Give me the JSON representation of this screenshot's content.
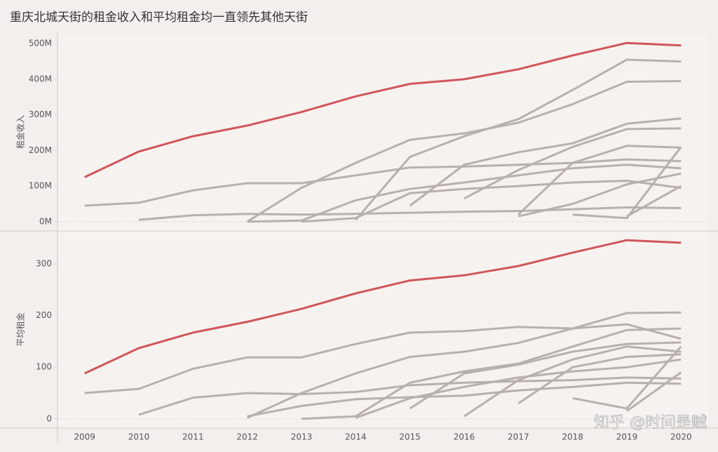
{
  "chart_data": [
    {
      "type": "line",
      "title": "重庆北城天街的租金收入和平均租金均一直领先其他天街",
      "y_label": "租金收入",
      "x": [
        2009,
        2010,
        2011,
        2012,
        2013,
        2014,
        2015,
        2016,
        2017,
        2018,
        2019,
        2020
      ],
      "xlim": [
        2008.5,
        2020.5
      ],
      "ylim": [
        -26,
        530
      ],
      "yticks": [
        {
          "value": 0,
          "label": "0M"
        },
        {
          "value": 100,
          "label": "100M"
        },
        {
          "value": 200,
          "label": "200M"
        },
        {
          "value": 300,
          "label": "300M"
        },
        {
          "value": 400,
          "label": "400M"
        },
        {
          "value": 500,
          "label": "500M"
        }
      ],
      "series": [
        {
          "color": "#d0565a",
          "values": [
            125,
            197,
            240,
            270,
            308,
            352,
            387,
            400,
            428,
            467,
            502,
            495
          ]
        },
        {
          "color": "#b8b0ae",
          "values": [
            45,
            53,
            88,
            108,
            108,
            130,
            152,
            155,
            160,
            165,
            175,
            170
          ]
        },
        {
          "color": "#b8b0ae",
          "values": [
            null,
            5,
            18,
            22,
            20,
            22,
            25,
            28,
            30,
            35,
            40,
            38
          ]
        },
        {
          "color": "#b8b0ae",
          "values": [
            null,
            null,
            null,
            0,
            95,
            165,
            230,
            248,
            278,
            330,
            393,
            395
          ]
        },
        {
          "color": "#b8b0ae",
          "values": [
            null,
            null,
            null,
            null,
            null,
            5,
            182,
            240,
            288,
            370,
            455,
            450
          ]
        },
        {
          "color": "#b8b0ae",
          "values": [
            null,
            null,
            null,
            0,
            3,
            60,
            92,
            110,
            130,
            150,
            160,
            150
          ]
        },
        {
          "color": "#b8b0ae",
          "values": [
            null,
            null,
            null,
            null,
            null,
            null,
            45,
            160,
            195,
            220,
            275,
            290
          ]
        },
        {
          "color": "#b8b0ae",
          "values": [
            null,
            null,
            null,
            null,
            null,
            null,
            null,
            65,
            145,
            210,
            260,
            262
          ]
        },
        {
          "color": "#b8b0ae",
          "values": [
            null,
            null,
            null,
            null,
            null,
            null,
            null,
            null,
            20,
            165,
            213,
            208
          ]
        },
        {
          "color": "#b8b0ae",
          "values": [
            null,
            null,
            null,
            null,
            0,
            10,
            80,
            92,
            100,
            110,
            115,
            95
          ]
        },
        {
          "color": "#b8b0ae",
          "values": [
            null,
            null,
            null,
            null,
            null,
            null,
            null,
            null,
            15,
            50,
            105,
            135
          ]
        },
        {
          "color": "#b8b0ae",
          "values": [
            null,
            null,
            null,
            null,
            null,
            null,
            null,
            null,
            null,
            20,
            10,
            210
          ]
        },
        {
          "color": "#b8b0ae",
          "values": [
            null,
            null,
            null,
            null,
            null,
            null,
            null,
            null,
            null,
            null,
            15,
            100
          ]
        }
      ]
    },
    {
      "type": "line",
      "y_label": "平均租金",
      "x": [
        2009,
        2010,
        2011,
        2012,
        2013,
        2014,
        2015,
        2016,
        2017,
        2018,
        2019,
        2020
      ],
      "xlim": [
        2008.5,
        2020.5
      ],
      "ylim": [
        -18,
        364
      ],
      "yticks": [
        0,
        100,
        200,
        300
      ],
      "series": [
        {
          "color": "#d0565a",
          "values": [
            88,
            137,
            167,
            188,
            213,
            243,
            268,
            278,
            296,
            322,
            346,
            341
          ]
        },
        {
          "color": "#b8b0ae",
          "values": [
            50,
            58,
            97,
            119,
            119,
            145,
            167,
            170,
            178,
            175,
            183,
            155
          ]
        },
        {
          "color": "#b8b0ae",
          "values": [
            null,
            8,
            41,
            50,
            48,
            52,
            65,
            70,
            73,
            75,
            80,
            78
          ]
        },
        {
          "color": "#b8b0ae",
          "values": [
            null,
            null,
            null,
            2,
            50,
            88,
            120,
            130,
            147,
            175,
            205,
            206
          ]
        },
        {
          "color": "#b8b0ae",
          "values": [
            null,
            null,
            null,
            null,
            0,
            5,
            70,
            92,
            107,
            140,
            172,
            175
          ]
        },
        {
          "color": "#b8b0ae",
          "values": [
            null,
            null,
            null,
            5,
            25,
            38,
            42,
            45,
            55,
            62,
            70,
            68
          ]
        },
        {
          "color": "#b8b0ae",
          "values": [
            null,
            null,
            null,
            null,
            null,
            null,
            20,
            88,
            105,
            130,
            145,
            148
          ]
        },
        {
          "color": "#b8b0ae",
          "values": [
            null,
            null,
            null,
            null,
            null,
            null,
            null,
            5,
            75,
            115,
            140,
            130
          ]
        },
        {
          "color": "#b8b0ae",
          "values": [
            null,
            null,
            null,
            null,
            null,
            null,
            null,
            null,
            30,
            100,
            120,
            125
          ]
        },
        {
          "color": "#b8b0ae",
          "values": [
            null,
            null,
            null,
            null,
            null,
            2,
            40,
            62,
            80,
            92,
            100,
            115
          ]
        },
        {
          "color": "#b8b0ae",
          "values": [
            null,
            null,
            null,
            null,
            null,
            null,
            null,
            null,
            null,
            40,
            20,
            140
          ]
        },
        {
          "color": "#b8b0ae",
          "values": [
            null,
            null,
            null,
            null,
            null,
            null,
            null,
            null,
            null,
            null,
            15,
            90
          ]
        }
      ]
    }
  ],
  "watermark": "知乎 @时间是贼"
}
